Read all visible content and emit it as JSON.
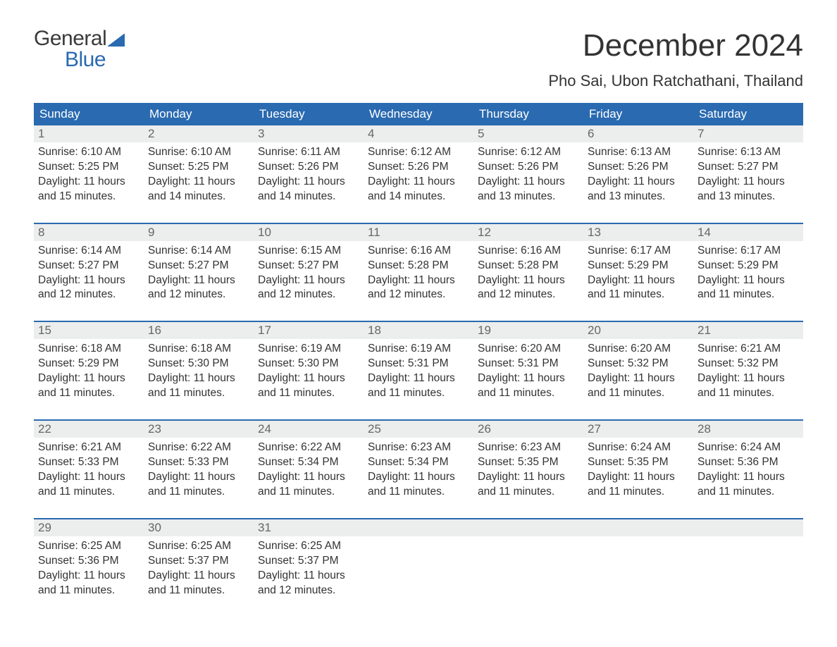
{
  "logo": {
    "top": "General",
    "bottom": "Blue"
  },
  "title": "December 2024",
  "location": "Pho Sai, Ubon Ratchathani, Thailand",
  "colors": {
    "header_bg": "#2a6ab0",
    "header_text": "#ffffff",
    "daynum_bg": "#eceded",
    "daynum_text": "#666666",
    "body_text": "#333333",
    "week_border": "#2a6ab0"
  },
  "day_headers": [
    "Sunday",
    "Monday",
    "Tuesday",
    "Wednesday",
    "Thursday",
    "Friday",
    "Saturday"
  ],
  "weeks": [
    [
      {
        "n": "1",
        "sunrise": "Sunrise: 6:10 AM",
        "sunset": "Sunset: 5:25 PM",
        "d1": "Daylight: 11 hours",
        "d2": "and 15 minutes."
      },
      {
        "n": "2",
        "sunrise": "Sunrise: 6:10 AM",
        "sunset": "Sunset: 5:25 PM",
        "d1": "Daylight: 11 hours",
        "d2": "and 14 minutes."
      },
      {
        "n": "3",
        "sunrise": "Sunrise: 6:11 AM",
        "sunset": "Sunset: 5:26 PM",
        "d1": "Daylight: 11 hours",
        "d2": "and 14 minutes."
      },
      {
        "n": "4",
        "sunrise": "Sunrise: 6:12 AM",
        "sunset": "Sunset: 5:26 PM",
        "d1": "Daylight: 11 hours",
        "d2": "and 14 minutes."
      },
      {
        "n": "5",
        "sunrise": "Sunrise: 6:12 AM",
        "sunset": "Sunset: 5:26 PM",
        "d1": "Daylight: 11 hours",
        "d2": "and 13 minutes."
      },
      {
        "n": "6",
        "sunrise": "Sunrise: 6:13 AM",
        "sunset": "Sunset: 5:26 PM",
        "d1": "Daylight: 11 hours",
        "d2": "and 13 minutes."
      },
      {
        "n": "7",
        "sunrise": "Sunrise: 6:13 AM",
        "sunset": "Sunset: 5:27 PM",
        "d1": "Daylight: 11 hours",
        "d2": "and 13 minutes."
      }
    ],
    [
      {
        "n": "8",
        "sunrise": "Sunrise: 6:14 AM",
        "sunset": "Sunset: 5:27 PM",
        "d1": "Daylight: 11 hours",
        "d2": "and 12 minutes."
      },
      {
        "n": "9",
        "sunrise": "Sunrise: 6:14 AM",
        "sunset": "Sunset: 5:27 PM",
        "d1": "Daylight: 11 hours",
        "d2": "and 12 minutes."
      },
      {
        "n": "10",
        "sunrise": "Sunrise: 6:15 AM",
        "sunset": "Sunset: 5:27 PM",
        "d1": "Daylight: 11 hours",
        "d2": "and 12 minutes."
      },
      {
        "n": "11",
        "sunrise": "Sunrise: 6:16 AM",
        "sunset": "Sunset: 5:28 PM",
        "d1": "Daylight: 11 hours",
        "d2": "and 12 minutes."
      },
      {
        "n": "12",
        "sunrise": "Sunrise: 6:16 AM",
        "sunset": "Sunset: 5:28 PM",
        "d1": "Daylight: 11 hours",
        "d2": "and 12 minutes."
      },
      {
        "n": "13",
        "sunrise": "Sunrise: 6:17 AM",
        "sunset": "Sunset: 5:29 PM",
        "d1": "Daylight: 11 hours",
        "d2": "and 11 minutes."
      },
      {
        "n": "14",
        "sunrise": "Sunrise: 6:17 AM",
        "sunset": "Sunset: 5:29 PM",
        "d1": "Daylight: 11 hours",
        "d2": "and 11 minutes."
      }
    ],
    [
      {
        "n": "15",
        "sunrise": "Sunrise: 6:18 AM",
        "sunset": "Sunset: 5:29 PM",
        "d1": "Daylight: 11 hours",
        "d2": "and 11 minutes."
      },
      {
        "n": "16",
        "sunrise": "Sunrise: 6:18 AM",
        "sunset": "Sunset: 5:30 PM",
        "d1": "Daylight: 11 hours",
        "d2": "and 11 minutes."
      },
      {
        "n": "17",
        "sunrise": "Sunrise: 6:19 AM",
        "sunset": "Sunset: 5:30 PM",
        "d1": "Daylight: 11 hours",
        "d2": "and 11 minutes."
      },
      {
        "n": "18",
        "sunrise": "Sunrise: 6:19 AM",
        "sunset": "Sunset: 5:31 PM",
        "d1": "Daylight: 11 hours",
        "d2": "and 11 minutes."
      },
      {
        "n": "19",
        "sunrise": "Sunrise: 6:20 AM",
        "sunset": "Sunset: 5:31 PM",
        "d1": "Daylight: 11 hours",
        "d2": "and 11 minutes."
      },
      {
        "n": "20",
        "sunrise": "Sunrise: 6:20 AM",
        "sunset": "Sunset: 5:32 PM",
        "d1": "Daylight: 11 hours",
        "d2": "and 11 minutes."
      },
      {
        "n": "21",
        "sunrise": "Sunrise: 6:21 AM",
        "sunset": "Sunset: 5:32 PM",
        "d1": "Daylight: 11 hours",
        "d2": "and 11 minutes."
      }
    ],
    [
      {
        "n": "22",
        "sunrise": "Sunrise: 6:21 AM",
        "sunset": "Sunset: 5:33 PM",
        "d1": "Daylight: 11 hours",
        "d2": "and 11 minutes."
      },
      {
        "n": "23",
        "sunrise": "Sunrise: 6:22 AM",
        "sunset": "Sunset: 5:33 PM",
        "d1": "Daylight: 11 hours",
        "d2": "and 11 minutes."
      },
      {
        "n": "24",
        "sunrise": "Sunrise: 6:22 AM",
        "sunset": "Sunset: 5:34 PM",
        "d1": "Daylight: 11 hours",
        "d2": "and 11 minutes."
      },
      {
        "n": "25",
        "sunrise": "Sunrise: 6:23 AM",
        "sunset": "Sunset: 5:34 PM",
        "d1": "Daylight: 11 hours",
        "d2": "and 11 minutes."
      },
      {
        "n": "26",
        "sunrise": "Sunrise: 6:23 AM",
        "sunset": "Sunset: 5:35 PM",
        "d1": "Daylight: 11 hours",
        "d2": "and 11 minutes."
      },
      {
        "n": "27",
        "sunrise": "Sunrise: 6:24 AM",
        "sunset": "Sunset: 5:35 PM",
        "d1": "Daylight: 11 hours",
        "d2": "and 11 minutes."
      },
      {
        "n": "28",
        "sunrise": "Sunrise: 6:24 AM",
        "sunset": "Sunset: 5:36 PM",
        "d1": "Daylight: 11 hours",
        "d2": "and 11 minutes."
      }
    ],
    [
      {
        "n": "29",
        "sunrise": "Sunrise: 6:25 AM",
        "sunset": "Sunset: 5:36 PM",
        "d1": "Daylight: 11 hours",
        "d2": "and 11 minutes."
      },
      {
        "n": "30",
        "sunrise": "Sunrise: 6:25 AM",
        "sunset": "Sunset: 5:37 PM",
        "d1": "Daylight: 11 hours",
        "d2": "and 11 minutes."
      },
      {
        "n": "31",
        "sunrise": "Sunrise: 6:25 AM",
        "sunset": "Sunset: 5:37 PM",
        "d1": "Daylight: 11 hours",
        "d2": "and 12 minutes."
      },
      null,
      null,
      null,
      null
    ]
  ]
}
